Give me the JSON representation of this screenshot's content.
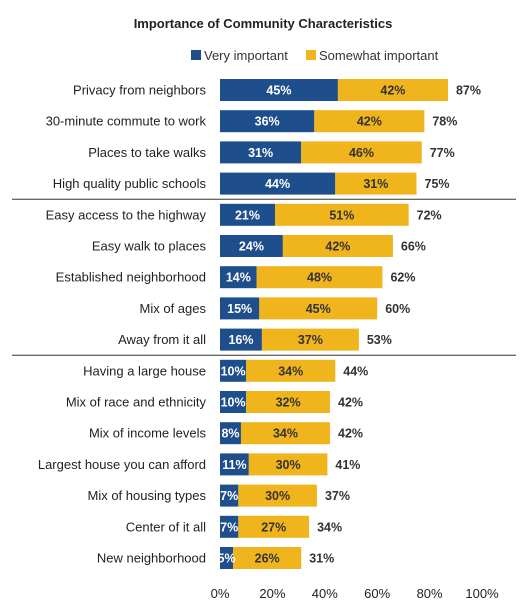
{
  "colors": {
    "very": "#1f4e8c",
    "somewhat": "#f0b41c",
    "very_label": "#ffffff",
    "somewhat_label": "#333333",
    "divider": "#333333"
  },
  "chart_data": {
    "type": "bar",
    "orientation": "horizontal",
    "stacked": true,
    "title": "Importance of Community Characteristics",
    "legend": {
      "placement": "top"
    },
    "categories": [
      "Privacy from neighbors",
      "30-minute commute to work",
      "Places to take walks",
      "High quality public schools",
      "Easy access to the highway",
      "Easy walk to places",
      "Established neighborhood",
      "Mix of ages",
      "Away from it all",
      "Having a large house",
      "Mix of race and ethnicity",
      "Mix of income levels",
      "Largest house you can afford",
      "Mix of housing types",
      "Center of it all",
      "New neighborhood"
    ],
    "series": [
      {
        "name": "Very important",
        "values": [
          45,
          36,
          31,
          44,
          21,
          24,
          14,
          15,
          16,
          10,
          10,
          8,
          11,
          7,
          7,
          5
        ]
      },
      {
        "name": "Somewhat important",
        "values": [
          42,
          42,
          46,
          31,
          51,
          42,
          48,
          45,
          37,
          34,
          32,
          34,
          30,
          30,
          27,
          26
        ]
      }
    ],
    "totals": [
      87,
      78,
      77,
      75,
      72,
      66,
      62,
      60,
      53,
      44,
      42,
      42,
      41,
      37,
      34,
      31
    ],
    "group_dividers_after": [
      3,
      8
    ],
    "xlim": [
      0,
      100
    ],
    "xticks": [
      "0%",
      "20%",
      "40%",
      "60%",
      "80%",
      "100%"
    ],
    "grid": false,
    "value_format": "percent"
  }
}
